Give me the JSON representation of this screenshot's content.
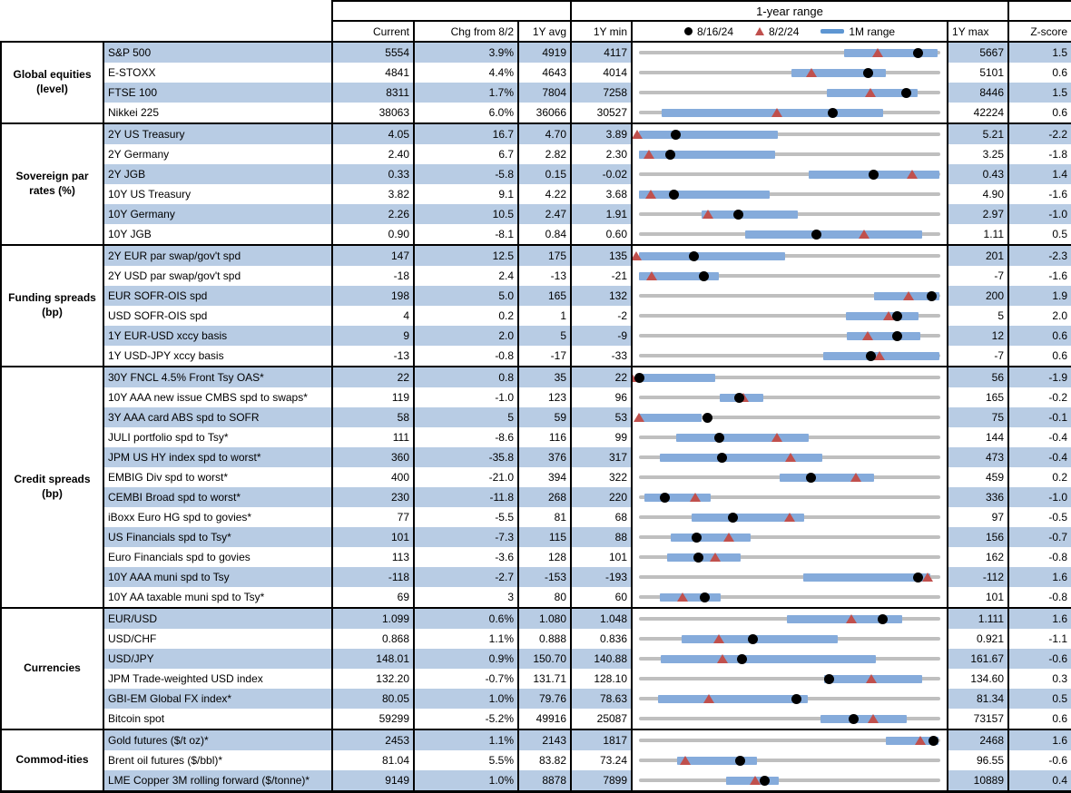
{
  "chart_data": {
    "type": "table+dot-range",
    "range_title": "1-year range",
    "columns": {
      "current": "Current",
      "chg": "Chg from 8/2",
      "avg": "1Y avg",
      "min": "1Y min",
      "max": "1Y max",
      "z": "Z-score"
    },
    "legend": [
      {
        "icon": "dot-icon",
        "label": "8/16/24"
      },
      {
        "icon": "triangle-icon",
        "label": "8/2/24"
      },
      {
        "icon": "bar-icon",
        "label": "1M range"
      }
    ],
    "colors": {
      "shade": "#b8cce4",
      "band": "#85abdb",
      "triangle": "#c0504d",
      "dot": "#000000",
      "track": "#bfbfbf"
    },
    "groups": [
      {
        "name": "Global equities (level)",
        "rows": [
          {
            "label": "S&P 500",
            "current": "5554",
            "chg": "3.9%",
            "avg": "4919",
            "min": "4117",
            "max": "5667",
            "z": "1.5",
            "chart": {
              "min": 4117,
              "max": 5667,
              "dot": 5554,
              "tri": 5346,
              "band": [
                5170,
                5655
              ]
            }
          },
          {
            "label": "E-STOXX",
            "current": "4841",
            "chg": "4.4%",
            "avg": "4643",
            "min": "4014",
            "max": "5101",
            "z": "0.6",
            "chart": {
              "min": 4014,
              "max": 5101,
              "dot": 4841,
              "tri": 4637,
              "band": [
                4565,
                4905
              ]
            }
          },
          {
            "label": "FTSE 100",
            "current": "8311",
            "chg": "1.7%",
            "avg": "7804",
            "min": "7258",
            "max": "8446",
            "z": "1.5",
            "chart": {
              "min": 7258,
              "max": 8446,
              "dot": 8311,
              "tri": 8172,
              "band": [
                8000,
                8357
              ]
            }
          },
          {
            "label": "Nikkei 225",
            "current": "38063",
            "chg": "6.0%",
            "avg": "36066",
            "min": "30527",
            "max": "42224",
            "z": "0.6",
            "chart": {
              "min": 30527,
              "max": 42224,
              "dot": 38063,
              "tri": 35909,
              "band": [
                31400,
                40000
              ]
            }
          }
        ]
      },
      {
        "name": "Sovereign par rates (%)",
        "rows": [
          {
            "label": "2Y US Treasury",
            "current": "4.05",
            "chg": "16.7",
            "avg": "4.70",
            "min": "3.89",
            "max": "5.21",
            "z": "-2.2",
            "chart": {
              "min": 3.89,
              "max": 5.21,
              "dot": 4.05,
              "tri": 3.883,
              "band": [
                3.89,
                4.5
              ]
            }
          },
          {
            "label": "2Y Germany",
            "current": "2.40",
            "chg": "6.7",
            "avg": "2.82",
            "min": "2.30",
            "max": "3.25",
            "z": "-1.8",
            "chart": {
              "min": 2.3,
              "max": 3.25,
              "dot": 2.4,
              "tri": 2.333,
              "band": [
                2.3,
                2.73
              ]
            }
          },
          {
            "label": "2Y JGB",
            "current": "0.33",
            "chg": "-5.8",
            "avg": "0.15",
            "min": "-0.02",
            "max": "0.43",
            "z": "1.4",
            "chart": {
              "min": -0.02,
              "max": 0.43,
              "dot": 0.33,
              "tri": 0.388,
              "band": [
                0.234,
                0.428
              ]
            }
          },
          {
            "label": "10Y US Treasury",
            "current": "3.82",
            "chg": "9.1",
            "avg": "4.22",
            "min": "3.68",
            "max": "4.90",
            "z": "-1.6",
            "chart": {
              "min": 3.68,
              "max": 4.9,
              "dot": 3.82,
              "tri": 3.729,
              "band": [
                3.68,
                4.21
              ]
            }
          },
          {
            "label": "10Y Germany",
            "current": "2.26",
            "chg": "10.5",
            "avg": "2.47",
            "min": "1.91",
            "max": "2.97",
            "z": "-1.0",
            "chart": {
              "min": 1.91,
              "max": 2.97,
              "dot": 2.26,
              "tri": 2.155,
              "band": [
                2.13,
                2.47
              ]
            }
          },
          {
            "label": "10Y JGB",
            "current": "0.90",
            "chg": "-8.1",
            "avg": "0.84",
            "min": "0.60",
            "max": "1.11",
            "z": "0.5",
            "chart": {
              "min": 0.6,
              "max": 1.11,
              "dot": 0.9,
              "tri": 0.981,
              "band": [
                0.78,
                1.08
              ]
            }
          }
        ]
      },
      {
        "name": "Funding spreads (bp)",
        "rows": [
          {
            "label": "2Y EUR par swap/gov't spd",
            "current": "147",
            "chg": "12.5",
            "avg": "175",
            "min": "135",
            "max": "201",
            "z": "-2.3",
            "chart": {
              "min": 135,
              "max": 201,
              "dot": 147,
              "tri": 134.5,
              "band": [
                135,
                167
              ]
            }
          },
          {
            "label": "2Y USD par swap/gov't spd",
            "current": "-18",
            "chg": "2.4",
            "avg": "-13",
            "min": "-21",
            "max": "-7",
            "z": "-1.6",
            "chart": {
              "min": -21,
              "max": -7,
              "dot": -18,
              "tri": -20.4,
              "band": [
                -21,
                -17.3
              ]
            }
          },
          {
            "label": "EUR SOFR-OIS spd",
            "current": "198",
            "chg": "5.0",
            "avg": "165",
            "min": "132",
            "max": "200",
            "z": "1.9",
            "chart": {
              "min": 132,
              "max": 200,
              "dot": 198,
              "tri": 193,
              "band": [
                185,
                199.7
              ]
            }
          },
          {
            "label": "USD SOFR-OIS spd",
            "current": "4",
            "chg": "0.2",
            "avg": "1",
            "min": "-2",
            "max": "5",
            "z": "2.0",
            "chart": {
              "min": -2,
              "max": 5,
              "dot": 4,
              "tri": 3.8,
              "band": [
                2.8,
                4.5
              ]
            }
          },
          {
            "label": "1Y EUR-USD xccy basis",
            "current": "9",
            "chg": "2.0",
            "avg": "5",
            "min": "-9",
            "max": "12",
            "z": "0.6",
            "chart": {
              "min": -9,
              "max": 12,
              "dot": 9,
              "tri": 7,
              "band": [
                5.5,
                10.6
              ]
            }
          },
          {
            "label": "1Y USD-JPY xccy basis",
            "current": "-13",
            "chg": "-0.8",
            "avg": "-17",
            "min": "-33",
            "max": "-7",
            "z": "0.6",
            "chart": {
              "min": -33,
              "max": -7,
              "dot": -13,
              "tri": -12.2,
              "band": [
                -17.1,
                -7.1
              ]
            }
          }
        ]
      },
      {
        "name": "Credit spreads (bp)",
        "rows": [
          {
            "label": "30Y FNCL 4.5% Front Tsy OAS*",
            "current": "22",
            "chg": "0.8",
            "avg": "35",
            "min": "22",
            "max": "56",
            "z": "-1.9",
            "chart": {
              "min": 22,
              "max": 56,
              "dot": 22,
              "tri": 21.2,
              "band": [
                22,
                30.6
              ]
            }
          },
          {
            "label": "10Y AAA new issue CMBS spd to swaps*",
            "current": "119",
            "chg": "-1.0",
            "avg": "123",
            "min": "96",
            "max": "165",
            "z": "-0.2",
            "chart": {
              "min": 96,
              "max": 165,
              "dot": 119,
              "tri": 120,
              "band": [
                114.5,
                124.4
              ]
            }
          },
          {
            "label": "3Y AAA card ABS spd to SOFR",
            "current": "58",
            "chg": "5",
            "avg": "59",
            "min": "53",
            "max": "75",
            "z": "-0.1",
            "chart": {
              "min": 53,
              "max": 75,
              "dot": 58,
              "tri": 53,
              "band": [
                53,
                57.6
              ]
            }
          },
          {
            "label": "JULI portfolio spd to Tsy*",
            "current": "111",
            "chg": "-8.6",
            "avg": "116",
            "min": "99",
            "max": "144",
            "z": "-0.4",
            "chart": {
              "min": 99,
              "max": 144,
              "dot": 111,
              "tri": 119.6,
              "band": [
                104.6,
                124.3
              ]
            }
          },
          {
            "label": "JPM US HY index spd to worst*",
            "current": "360",
            "chg": "-35.8",
            "avg": "376",
            "min": "317",
            "max": "473",
            "z": "-0.4",
            "chart": {
              "min": 317,
              "max": 473,
              "dot": 360,
              "tri": 395.8,
              "band": [
                328,
                412
              ]
            }
          },
          {
            "label": "EMBIG Div spd to worst*",
            "current": "400",
            "chg": "-21.0",
            "avg": "394",
            "min": "322",
            "max": "459",
            "z": "0.2",
            "chart": {
              "min": 322,
              "max": 459,
              "dot": 400,
              "tri": 421,
              "band": [
                386,
                429
              ]
            }
          },
          {
            "label": "CEMBI Broad spd to worst*",
            "current": "230",
            "chg": "-11.8",
            "avg": "268",
            "min": "220",
            "max": "336",
            "z": "-1.0",
            "chart": {
              "min": 220,
              "max": 336,
              "dot": 230,
              "tri": 241.8,
              "band": [
                222,
                247.5
              ]
            }
          },
          {
            "label": "iBoxx Euro HG spd to govies*",
            "current": "77",
            "chg": "-5.5",
            "avg": "81",
            "min": "68",
            "max": "97",
            "z": "-0.5",
            "chart": {
              "min": 68,
              "max": 97,
              "dot": 77,
              "tri": 82.5,
              "band": [
                73.1,
                83.9
              ]
            }
          },
          {
            "label": "US Financials spd to Tsy*",
            "current": "101",
            "chg": "-7.3",
            "avg": "115",
            "min": "88",
            "max": "156",
            "z": "-0.7",
            "chart": {
              "min": 88,
              "max": 156,
              "dot": 101,
              "tri": 108.3,
              "band": [
                95.1,
                113.2
              ]
            }
          },
          {
            "label": "Euro Financials spd to govies",
            "current": "113",
            "chg": "-3.6",
            "avg": "128",
            "min": "101",
            "max": "162",
            "z": "-0.8",
            "chart": {
              "min": 101,
              "max": 162,
              "dot": 113,
              "tri": 116.6,
              "band": [
                106.7,
                121.6
              ]
            }
          },
          {
            "label": "10Y AAA muni spd to Tsy",
            "current": "-118",
            "chg": "-2.7",
            "avg": "-153",
            "min": "-193",
            "max": "-112",
            "z": "1.6",
            "chart": {
              "min": -193,
              "max": -112,
              "dot": -118,
              "tri": -115.3,
              "band": [
                -148.9,
                -114.8
              ]
            }
          },
          {
            "label": "10Y AA taxable muni spd to Tsy*",
            "current": "69",
            "chg": "3",
            "avg": "80",
            "min": "60",
            "max": "101",
            "z": "-0.8",
            "chart": {
              "min": 60,
              "max": 101,
              "dot": 69,
              "tri": 66,
              "band": [
                62.8,
                71.1
              ]
            }
          }
        ]
      },
      {
        "name": "Currencies",
        "rows": [
          {
            "label": "EUR/USD",
            "current": "1.099",
            "chg": "0.6%",
            "avg": "1.080",
            "min": "1.048",
            "max": "1.111",
            "z": "1.6",
            "chart": {
              "min": 1.048,
              "max": 1.111,
              "dot": 1.099,
              "tri": 1.0924,
              "band": [
                1.079,
                1.103
              ]
            }
          },
          {
            "label": "USD/CHF",
            "current": "0.868",
            "chg": "1.1%",
            "avg": "0.888",
            "min": "0.836",
            "max": "0.921",
            "z": "-1.1",
            "chart": {
              "min": 0.836,
              "max": 0.921,
              "dot": 0.868,
              "tri": 0.8586,
              "band": [
                0.848,
                0.892
              ]
            }
          },
          {
            "label": "USD/JPY",
            "current": "148.01",
            "chg": "0.9%",
            "avg": "150.70",
            "min": "140.88",
            "max": "161.67",
            "z": "-0.6",
            "chart": {
              "min": 140.88,
              "max": 161.67,
              "dot": 148.01,
              "tri": 146.69,
              "band": [
                142.4,
                157.2
              ]
            }
          },
          {
            "label": "JPM Trade-weighted USD index",
            "current": "132.20",
            "chg": "-0.7%",
            "avg": "131.71",
            "min": "128.10",
            "max": "134.60",
            "z": "0.3",
            "chart": {
              "min": 128.1,
              "max": 134.6,
              "dot": 132.2,
              "tri": 133.13,
              "band": [
                132.1,
                134.2
              ]
            }
          },
          {
            "label": "GBI-EM Global FX index*",
            "current": "80.05",
            "chg": "1.0%",
            "avg": "79.76",
            "min": "78.63",
            "max": "81.34",
            "z": "0.5",
            "chart": {
              "min": 78.63,
              "max": 81.34,
              "dot": 80.05,
              "tri": 79.26,
              "band": [
                78.8,
                80.15
              ]
            }
          },
          {
            "label": "Bitcoin spot",
            "current": "59299",
            "chg": "-5.2%",
            "avg": "49916",
            "min": "25087",
            "max": "73157",
            "z": "0.6",
            "chart": {
              "min": 25087,
              "max": 73157,
              "dot": 59299,
              "tri": 62551,
              "band": [
                54000,
                67800
              ]
            }
          }
        ]
      },
      {
        "name": "Commod-ities",
        "rows": [
          {
            "label": "Gold futures ($/t oz)*",
            "current": "2453",
            "chg": "1.1%",
            "avg": "2143",
            "min": "1817",
            "max": "2468",
            "z": "1.6",
            "chart": {
              "min": 1817,
              "max": 2468,
              "dot": 2453,
              "tri": 2426,
              "band": [
                2350,
                2465
              ]
            }
          },
          {
            "label": "Brent oil futures ($/bbl)*",
            "current": "81.04",
            "chg": "5.5%",
            "avg": "83.82",
            "min": "73.24",
            "max": "96.55",
            "z": "-0.6",
            "chart": {
              "min": 73.24,
              "max": 96.55,
              "dot": 81.04,
              "tri": 76.82,
              "band": [
                76.2,
                82.4
              ]
            }
          },
          {
            "label": "LME Copper 3M rolling forward ($/tonne)*",
            "current": "9149",
            "chg": "1.0%",
            "avg": "8878",
            "min": "7899",
            "max": "10889",
            "z": "0.4",
            "chart": {
              "min": 7899,
              "max": 10889,
              "dot": 9149,
              "tri": 9058,
              "band": [
                8760,
                9290
              ]
            }
          }
        ]
      }
    ]
  }
}
